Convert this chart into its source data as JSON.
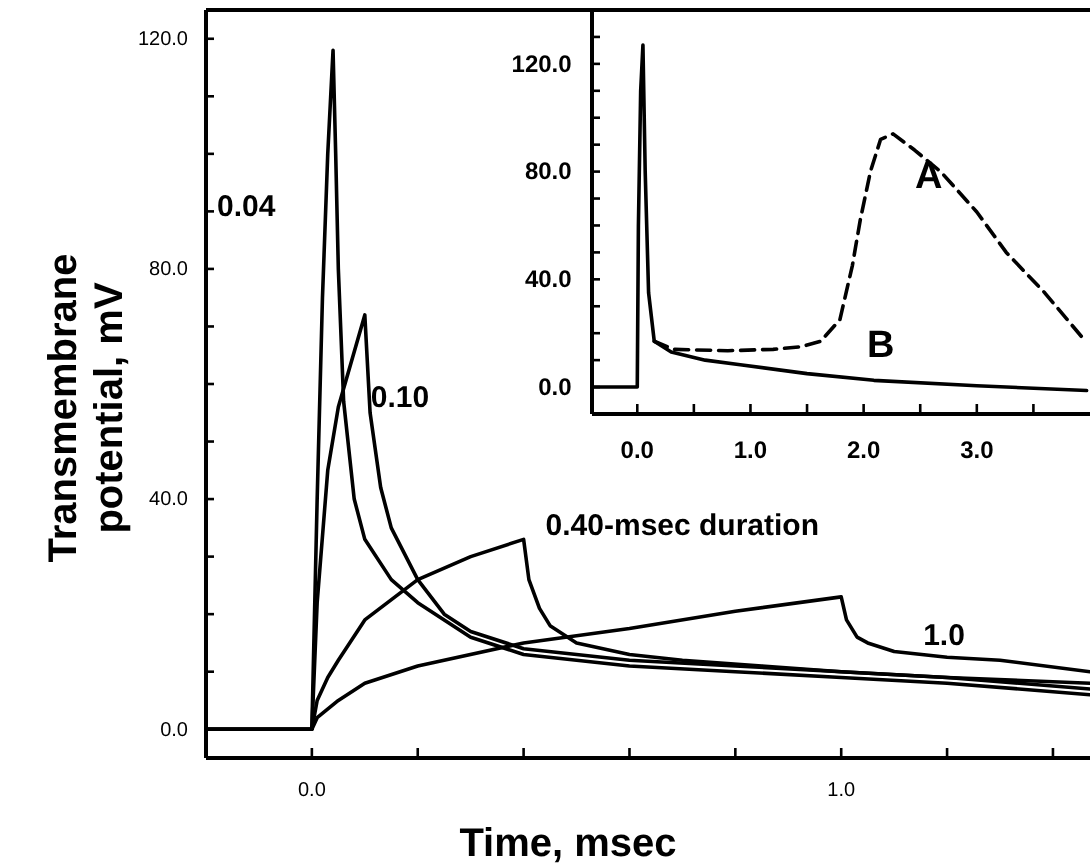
{
  "chart_data": [
    {
      "type": "line",
      "xlabel": "Time, msec",
      "ylabel": "Transmembrane potential, mV",
      "xlim": [
        -0.2,
        1.47
      ],
      "ylim": [
        -5,
        125
      ],
      "xticks": [
        {
          "value": 0,
          "label": "0.0"
        },
        {
          "value": 0.2,
          "label": null
        },
        {
          "value": 0.4,
          "label": null
        },
        {
          "value": 0.6,
          "label": null
        },
        {
          "value": 0.8,
          "label": null
        },
        {
          "value": 1,
          "label": "1.0"
        },
        {
          "value": 1.2,
          "label": null
        },
        {
          "value": 1.4,
          "label": null
        }
      ],
      "yticks": [
        {
          "value": 0,
          "label": "0.0"
        },
        {
          "value": 10,
          "label": null
        },
        {
          "value": 20,
          "label": null
        },
        {
          "value": 30,
          "label": null
        },
        {
          "value": 40,
          "label": "40.0"
        },
        {
          "value": 50,
          "label": null
        },
        {
          "value": 60,
          "label": null
        },
        {
          "value": 70,
          "label": null
        },
        {
          "value": 80,
          "label": "80.0"
        },
        {
          "value": 90,
          "label": null
        },
        {
          "value": 100,
          "label": null
        },
        {
          "value": 110,
          "label": null
        },
        {
          "value": 120,
          "label": "120.0"
        }
      ],
      "line_style": "solid",
      "marker": "none",
      "legend": false,
      "grid": false,
      "series": [
        {
          "name": "0.04",
          "color": "#000000",
          "x": [
            -0.2,
            0,
            0.01,
            0.02,
            0.03,
            0.04,
            0.045,
            0.05,
            0.06,
            0.08,
            0.1,
            0.15,
            0.2,
            0.3,
            0.4,
            0.6,
            0.8,
            1.0,
            1.2,
            1.47
          ],
          "values": [
            0,
            0,
            40,
            75,
            100,
            118,
            100,
            80,
            57,
            40,
            33,
            26,
            22,
            16,
            13,
            11,
            10,
            9,
            8,
            6
          ]
        },
        {
          "name": "0.10",
          "color": "#000000",
          "x": [
            -0.2,
            0,
            0.01,
            0.03,
            0.05,
            0.075,
            0.1,
            0.11,
            0.13,
            0.15,
            0.2,
            0.25,
            0.3,
            0.4,
            0.6,
            0.8,
            1.0,
            1.2,
            1.47
          ],
          "values": [
            0,
            0,
            22,
            45,
            56,
            64,
            72,
            55,
            42,
            35,
            26,
            20,
            17,
            14,
            12,
            11,
            10,
            9,
            7
          ]
        },
        {
          "name": "0.40-msec duration",
          "color": "#000000",
          "x": [
            -0.2,
            0,
            0.01,
            0.03,
            0.05,
            0.1,
            0.2,
            0.3,
            0.4,
            0.41,
            0.43,
            0.45,
            0.5,
            0.6,
            0.7,
            0.85,
            1.0,
            1.2,
            1.47
          ],
          "values": [
            0,
            0,
            5,
            9,
            12,
            19,
            26,
            30,
            33,
            26,
            21,
            18,
            15,
            13,
            12,
            11,
            10,
            9,
            8
          ]
        },
        {
          "name": "1.0",
          "color": "#000000",
          "x": [
            -0.2,
            0,
            0.01,
            0.05,
            0.1,
            0.2,
            0.4,
            0.6,
            0.8,
            1.0,
            1.01,
            1.03,
            1.05,
            1.1,
            1.2,
            1.3,
            1.47
          ],
          "values": [
            0,
            0,
            2,
            5,
            8,
            11,
            15,
            17.5,
            20.5,
            23,
            19,
            16,
            15,
            13.5,
            12.5,
            12,
            10
          ]
        }
      ]
    },
    {
      "type": "line",
      "xlim": [
        -0.4,
        4.0
      ],
      "ylim": [
        -10,
        140
      ],
      "xticks": [
        {
          "value": 0,
          "label": "0.0"
        },
        {
          "value": 0.5,
          "label": null
        },
        {
          "value": 1,
          "label": "1.0"
        },
        {
          "value": 1.5,
          "label": null
        },
        {
          "value": 2,
          "label": "2.0"
        },
        {
          "value": 2.5,
          "label": null
        },
        {
          "value": 3,
          "label": "3.0"
        },
        {
          "value": 3.5,
          "label": null
        }
      ],
      "yticks": [
        {
          "value": 0,
          "label": "0.0"
        },
        {
          "value": 10,
          "label": null
        },
        {
          "value": 20,
          "label": null
        },
        {
          "value": 30,
          "label": null
        },
        {
          "value": 40,
          "label": "40.0"
        },
        {
          "value": 50,
          "label": null
        },
        {
          "value": 60,
          "label": null
        },
        {
          "value": 70,
          "label": null
        },
        {
          "value": 80,
          "label": "80.0"
        },
        {
          "value": 90,
          "label": null
        },
        {
          "value": 100,
          "label": null
        },
        {
          "value": 110,
          "label": null
        },
        {
          "value": 120,
          "label": "120.0"
        },
        {
          "value": 130,
          "label": null
        }
      ],
      "marker": "none",
      "legend": false,
      "grid": false,
      "series": [
        {
          "name": "A",
          "color": "#000000",
          "line_style": "dashed",
          "x": [
            0.15,
            0.32,
            0.8,
            1.2,
            1.45,
            1.62,
            1.79,
            1.9,
            1.97,
            2.06,
            2.15,
            2.26,
            2.45,
            2.68,
            3.0,
            3.26,
            3.6,
            3.94
          ],
          "values": [
            17,
            14,
            13.5,
            14,
            15,
            17,
            25,
            45,
            62,
            80,
            92,
            94,
            88,
            80,
            65,
            50,
            35,
            18
          ]
        },
        {
          "name": "B",
          "color": "#000000",
          "line_style": "solid",
          "x": [
            -0.4,
            0,
            0.01,
            0.03,
            0.05,
            0.07,
            0.1,
            0.15,
            0.3,
            0.6,
            0.91,
            1.5,
            2.09,
            3.0,
            3.97
          ],
          "values": [
            0,
            0,
            60,
            110,
            127,
            80,
            35,
            17,
            13,
            10,
            8.3,
            5,
            2.5,
            0.5,
            -1.3
          ]
        }
      ]
    }
  ]
}
